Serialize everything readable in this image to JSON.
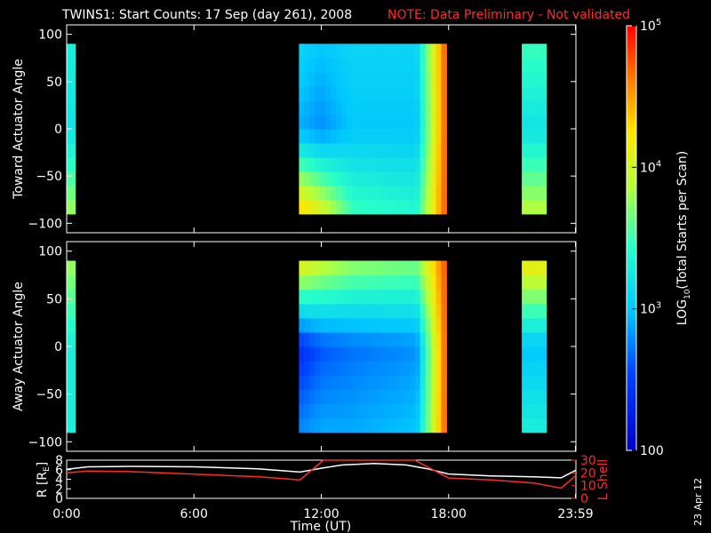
{
  "title": {
    "main": "TWINS1: Start Counts: 17 Sep (day 261), 2008",
    "note": "NOTE: Data Preliminary - Not validated",
    "note_color": "#ff2a2a"
  },
  "stamp": "23 Apr 12",
  "colorbar": {
    "label": "LOG10(Total Starts per Scan)",
    "label_parts": {
      "pre": "LOG",
      "sub": "10",
      "post": "(Total Starts per Scan)"
    },
    "ticks": [
      {
        "value": 100,
        "base": "100",
        "exp": ""
      },
      {
        "value": 1000,
        "base": "10",
        "exp": "3"
      },
      {
        "value": 10000,
        "base": "10",
        "exp": "4"
      },
      {
        "value": 100000,
        "base": "10",
        "exp": "5"
      }
    ],
    "range": [
      100,
      100000
    ],
    "scale": "log",
    "colormap": "rainbow"
  },
  "chart_data": [
    {
      "type": "heatmap",
      "name": "toward",
      "ylabel": "Toward Actuator Angle",
      "ylim": [
        -110,
        110
      ],
      "yticks": [
        100,
        50,
        0,
        -50,
        -100
      ],
      "xlim_hours": [
        0,
        24
      ],
      "angle_range": [
        -90,
        90
      ],
      "data_intervals_hours": [
        [
          0.0,
          0.4
        ],
        [
          10.95,
          17.9
        ],
        [
          21.45,
          22.6
        ]
      ],
      "color_profile_log10": [
        {
          "t": 0.0,
          "top": 3.3,
          "mid": 3.2,
          "bot": 3.8
        },
        {
          "t": 0.4,
          "top": 3.3,
          "mid": 3.2,
          "bot": 3.8
        },
        {
          "t": 11.0,
          "top": 3.1,
          "mid": 2.9,
          "bot": 4.4
        },
        {
          "t": 12.0,
          "top": 3.0,
          "mid": 2.8,
          "bot": 4.1
        },
        {
          "t": 13.5,
          "top": 3.1,
          "mid": 3.0,
          "bot": 3.5
        },
        {
          "t": 16.5,
          "top": 3.1,
          "mid": 3.0,
          "bot": 3.4
        },
        {
          "t": 17.9,
          "top": 4.8,
          "mid": 4.8,
          "bot": 4.8
        },
        {
          "t": 21.5,
          "top": 3.5,
          "mid": 3.2,
          "bot": 3.9
        },
        {
          "t": 22.6,
          "top": 3.5,
          "mid": 3.2,
          "bot": 3.9
        }
      ]
    },
    {
      "type": "heatmap",
      "name": "away",
      "ylabel": "Away Actuator Angle",
      "ylim": [
        -110,
        110
      ],
      "yticks": [
        100,
        50,
        0,
        -50,
        -100
      ],
      "xlim_hours": [
        0,
        24
      ],
      "angle_range": [
        -90,
        90
      ],
      "data_intervals_hours": [
        [
          0.0,
          0.4
        ],
        [
          10.95,
          17.9
        ],
        [
          21.45,
          22.6
        ]
      ],
      "color_profile_log10": [
        {
          "t": 0.0,
          "top": 3.8,
          "mid": 3.3,
          "bot": 3.3
        },
        {
          "t": 0.4,
          "top": 3.8,
          "mid": 3.3,
          "bot": 3.3
        },
        {
          "t": 11.0,
          "top": 4.2,
          "mid": 2.4,
          "bot": 2.8
        },
        {
          "t": 12.0,
          "top": 4.0,
          "mid": 2.6,
          "bot": 2.9
        },
        {
          "t": 13.5,
          "top": 3.8,
          "mid": 2.7,
          "bot": 2.9
        },
        {
          "t": 16.5,
          "top": 3.7,
          "mid": 2.8,
          "bot": 3.0
        },
        {
          "t": 17.9,
          "top": 4.8,
          "mid": 4.8,
          "bot": 4.8
        },
        {
          "t": 21.5,
          "top": 4.2,
          "mid": 3.0,
          "bot": 3.3
        },
        {
          "t": 22.6,
          "top": 4.2,
          "mid": 3.0,
          "bot": 3.3
        }
      ]
    },
    {
      "type": "line",
      "name": "orbit",
      "xlabel": "Time (UT)",
      "xlim_hours": [
        0,
        24
      ],
      "xticks": [
        {
          "value": 0,
          "label": "0:00"
        },
        {
          "value": 6,
          "label": "6:00"
        },
        {
          "value": 12,
          "label": "12:00"
        },
        {
          "value": 18,
          "label": "18:00"
        },
        {
          "value": 23.98,
          "label": "23:59"
        }
      ],
      "left_axis": {
        "label": "R [RE]",
        "label_parts": {
          "pre": "R [R",
          "sub": "E",
          "post": "]"
        },
        "ylim": [
          0,
          8
        ],
        "ticks": [
          0,
          2,
          4,
          6,
          8
        ],
        "color": "#ffffff"
      },
      "right_axis": {
        "label": "L Shell",
        "ylim": [
          0,
          30
        ],
        "ticks": [
          0,
          10,
          20,
          30
        ],
        "color": "#ff2a2a"
      },
      "series": [
        {
          "axis": "left",
          "color": "#ffffff",
          "x": [
            0,
            1,
            3,
            6,
            9,
            11,
            12,
            13,
            14.5,
            16,
            17,
            18,
            20,
            22,
            23.3,
            24
          ],
          "y": [
            6.1,
            6.6,
            6.7,
            6.6,
            6.2,
            5.5,
            6.3,
            7.0,
            7.3,
            7.0,
            6.2,
            5.1,
            4.7,
            4.5,
            4.3,
            5.9
          ]
        },
        {
          "axis": "right",
          "color": "#ff2a2a",
          "x": [
            0,
            1,
            3,
            6,
            9,
            11,
            12.1,
            16.4,
            18,
            20,
            22,
            23.3,
            24
          ],
          "y": [
            20,
            21.5,
            21,
            19,
            17,
            14.5,
            30,
            30,
            16,
            14.5,
            12,
            8,
            18
          ]
        }
      ]
    }
  ]
}
